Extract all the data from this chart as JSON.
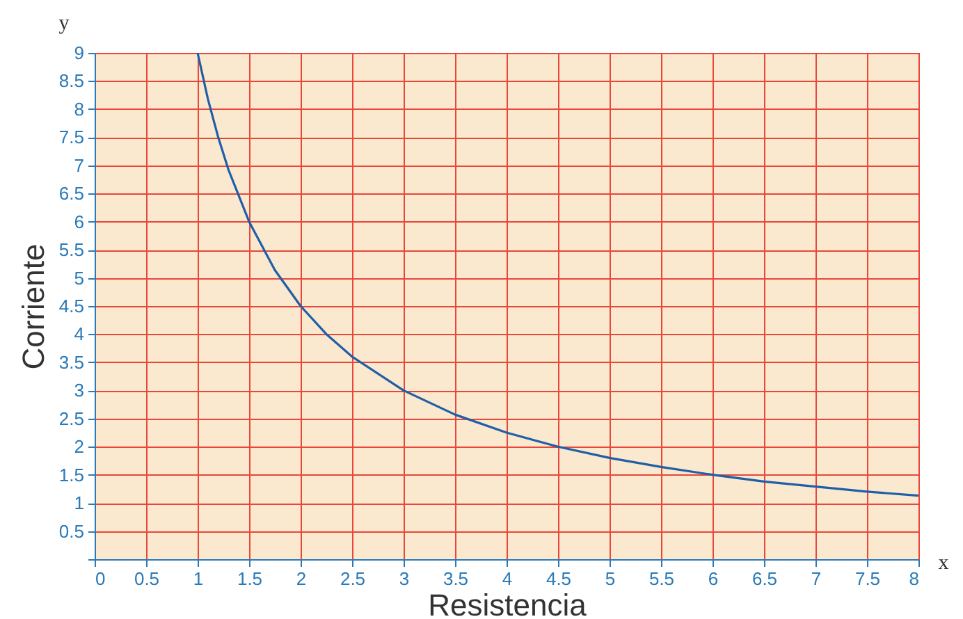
{
  "chart_data": {
    "type": "line",
    "xlabel": "Resistencia",
    "ylabel": "Corriente",
    "annotations": [
      "y",
      "x"
    ],
    "x": [
      1,
      1.1,
      1.2,
      1.3,
      1.5,
      1.75,
      2,
      2.25,
      2.5,
      3,
      3.5,
      4,
      4.5,
      5,
      5.5,
      6,
      6.5,
      7,
      7.5,
      8
    ],
    "series": [
      {
        "color": "#1f5fa8",
        "values": [
          9,
          8.18,
          7.5,
          6.92,
          6,
          5.14,
          4.5,
          4,
          3.6,
          3,
          2.57,
          2.25,
          2,
          1.8,
          1.64,
          1.5,
          1.38,
          1.29,
          1.2,
          1.13
        ]
      }
    ],
    "xlim": [
      0,
      8
    ],
    "ylim": [
      0,
      9
    ],
    "xticks": [
      0,
      0.5,
      1,
      1.5,
      2,
      2.5,
      3,
      3.5,
      4,
      4.5,
      5,
      5.5,
      6,
      6.5,
      7,
      7.5,
      8
    ],
    "yticks": [
      {
        "value": 0,
        "label": null
      },
      0.5,
      1,
      1.5,
      2,
      2.5,
      3,
      3.5,
      4,
      4.5,
      5,
      5.5,
      6,
      6.5,
      7,
      7.5,
      8,
      8.5,
      9
    ],
    "grid": true,
    "marker": "none",
    "line_style": "solid"
  }
}
